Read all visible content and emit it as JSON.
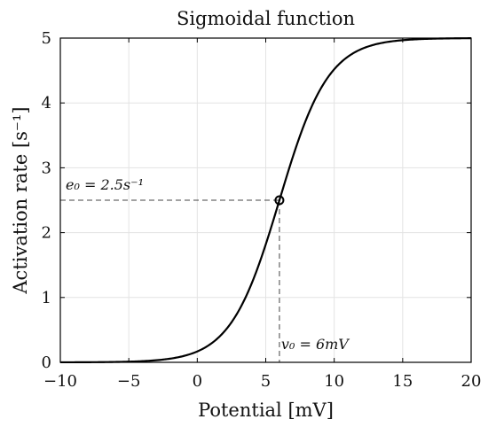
{
  "chart_data": {
    "type": "line",
    "title": "Sigmoidal function",
    "xlabel": "Potential [mV]",
    "ylabel": "Activation rate [s⁻¹]",
    "xlim": [
      -10,
      20
    ],
    "ylim": [
      0,
      5
    ],
    "xticks": [
      -10,
      -5,
      0,
      5,
      10,
      15,
      20
    ],
    "xtick_labels": [
      "−10",
      "−5",
      "0",
      "5",
      "10",
      "15",
      "20"
    ],
    "yticks": [
      0,
      1,
      2,
      3,
      4,
      5
    ],
    "ytick_labels": [
      "0",
      "1",
      "2",
      "3",
      "4",
      "5"
    ],
    "grid": true,
    "series": [
      {
        "function": "2*e0 / (1 + exp(r*(v0 - v)))",
        "params": {
          "e0": 2.5,
          "v0": 6,
          "r": 0.56
        },
        "x": [
          -10,
          -8,
          -6,
          -4,
          -2,
          0,
          2,
          4,
          5,
          6,
          7,
          8,
          10,
          12,
          14,
          16,
          18,
          20
        ],
        "values": [
          0.0006,
          0.002,
          0.006,
          0.018,
          0.057,
          0.17,
          0.48,
          1.23,
          1.82,
          2.5,
          3.18,
          3.77,
          4.52,
          4.83,
          4.94,
          4.98,
          4.99,
          5.0
        ],
        "color": "#000000"
      }
    ],
    "annotations": {
      "point": {
        "x": 6,
        "y": 2.5
      },
      "e0_label": "e₀ = 2.5s⁻¹",
      "v0_label": "v₀ = 6mV"
    }
  }
}
